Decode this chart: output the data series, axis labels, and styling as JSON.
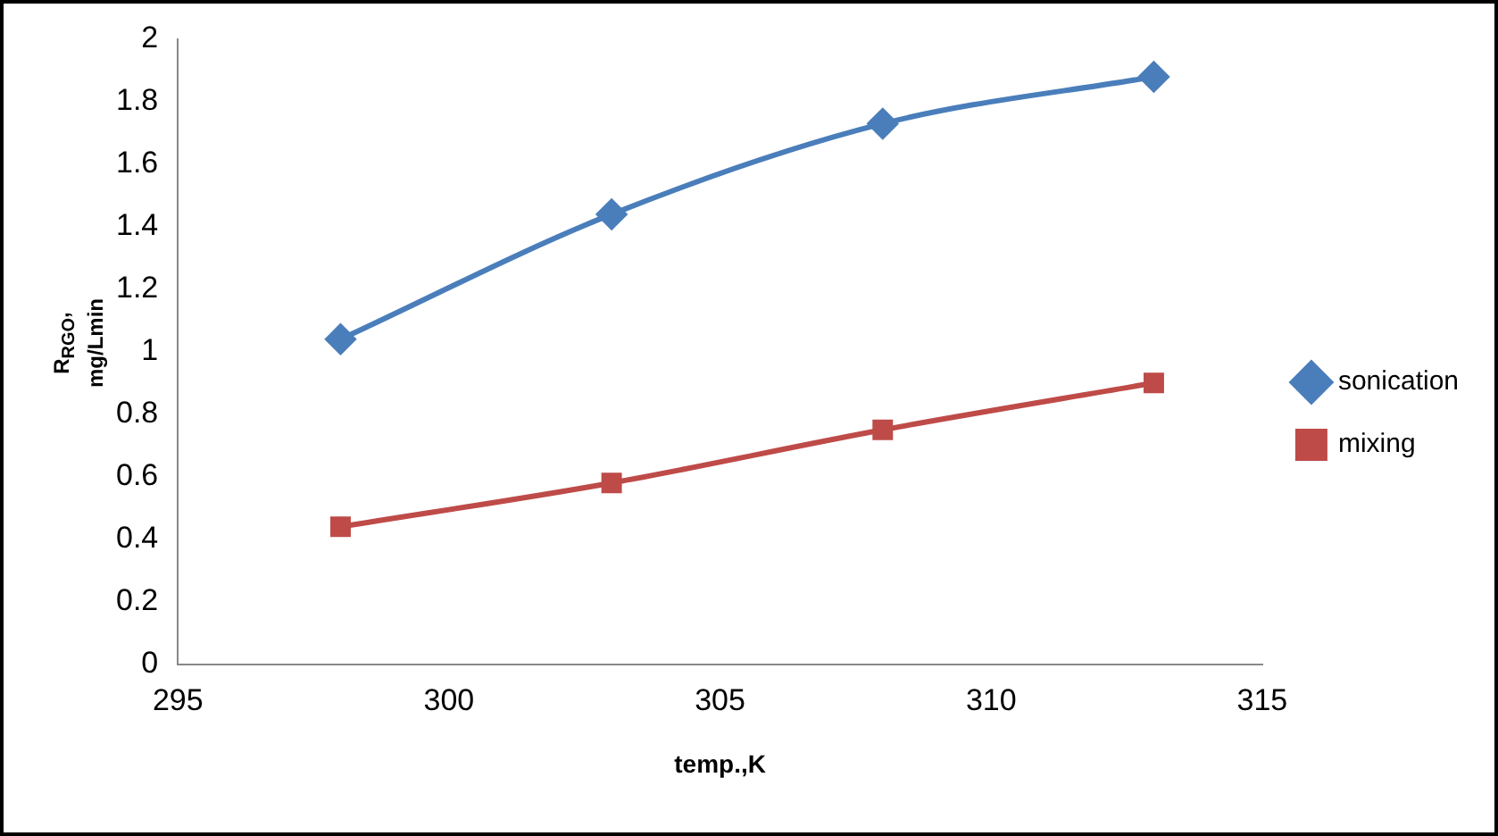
{
  "chart_data": {
    "type": "line",
    "xlabel": "temp.,K",
    "ylabel": "R$_{RGO}$, mg/Lmin",
    "x": [
      298,
      303,
      308,
      313
    ],
    "series": [
      {
        "name": "sonication",
        "color": "#4a7ebb",
        "values": [
          1.04,
          1.44,
          1.73,
          1.88
        ],
        "marker": "diamond"
      },
      {
        "name": "mixing",
        "color": "#be4b48",
        "values": [
          0.44,
          0.58,
          0.75,
          0.9
        ],
        "marker": "square"
      }
    ],
    "xlim": [
      295,
      315
    ],
    "xticks": [
      295,
      300,
      305,
      310,
      315
    ],
    "ylim": [
      0,
      2
    ],
    "yticks": [
      0,
      0.2,
      0.4,
      0.6,
      0.8,
      1,
      1.2,
      1.4,
      1.6,
      1.8,
      2
    ],
    "grid": false,
    "legend": "right"
  }
}
